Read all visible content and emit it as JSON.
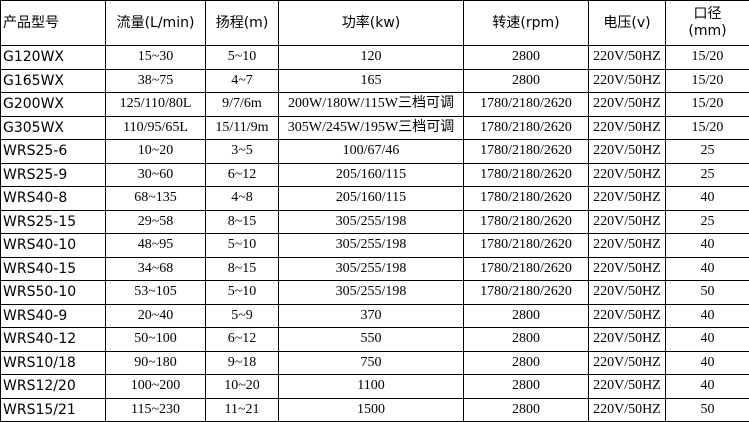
{
  "table": {
    "header": [
      "产品型号",
      "流量(L/min)",
      "扬程(m)",
      "功率(kw)",
      "转速(rpm)",
      "电压(v)",
      "口径\n(mm)"
    ],
    "rows": [
      [
        "G120WX",
        "15~30",
        "5~10",
        "120",
        "2800",
        "220V/50HZ",
        "15/20"
      ],
      [
        "G165WX",
        "38~75",
        "4~7",
        "165",
        "2800",
        "220V/50HZ",
        "15/20"
      ],
      [
        "G200WX",
        "125/110/80L",
        "9/7/6m",
        "200W/180W/115W三档可调",
        "1780/2180/2620",
        "220V/50HZ",
        "15/20"
      ],
      [
        "G305WX",
        "110/95/65L",
        "15/11/9m",
        "305W/245W/195W三档可调",
        "1780/2180/2620",
        "220V/50HZ",
        "15/20"
      ],
      [
        "WRS25-6",
        "10~20",
        "3~5",
        "100/67/46",
        "1780/2180/2620",
        "220V/50HZ",
        "25"
      ],
      [
        "WRS25-9",
        "30~60",
        "6~12",
        "205/160/115",
        "1780/2180/2620",
        "220V/50HZ",
        "25"
      ],
      [
        "WRS40-8",
        "68~135",
        "4~8",
        "205/160/115",
        "1780/2180/2620",
        "220V/50HZ",
        "40"
      ],
      [
        "WRS25-15",
        "29~58",
        "8~15",
        "305/255/198",
        "1780/2180/2620",
        "220V/50HZ",
        "25"
      ],
      [
        "WRS40-10",
        "48~95",
        "5~10",
        "305/255/198",
        "1780/2180/2620",
        "220V/50HZ",
        "40"
      ],
      [
        "WRS40-15",
        "34~68",
        "8~15",
        "305/255/198",
        "1780/2180/2620",
        "220V/50HZ",
        "40"
      ],
      [
        "WRS50-10",
        "53~105",
        "5~10",
        "305/255/198",
        "1780/2180/2620",
        "220V/50HZ",
        "50"
      ],
      [
        "WRS40-9",
        "20~40",
        "5~9",
        "370",
        "2800",
        "220V/50HZ",
        "40"
      ],
      [
        "WRS40-12",
        "50~100",
        "6~12",
        "550",
        "2800",
        "220V/50HZ",
        "40"
      ],
      [
        "WRS10/18",
        "90~180",
        "9~18",
        "750",
        "2800",
        "220V/50HZ",
        "40"
      ],
      [
        "WRS12/20",
        "100~200",
        "10~20",
        "1100",
        "2800",
        "220V/50HZ",
        "40"
      ],
      [
        "WRS15/21",
        "115~230",
        "11~21",
        "1500",
        "2800",
        "220V/50HZ",
        "50"
      ]
    ]
  }
}
